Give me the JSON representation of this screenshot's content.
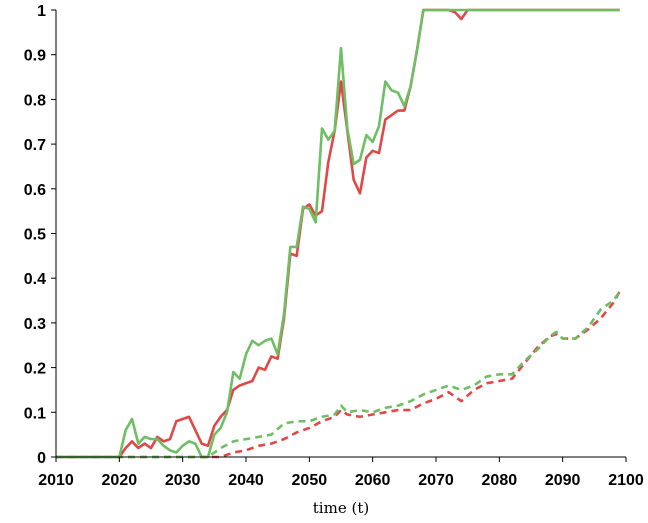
{
  "chart_data": {
    "type": "line",
    "title": "",
    "xlabel": "time (t)",
    "ylabel": "",
    "xlim": [
      2010,
      2100
    ],
    "ylim": [
      0,
      1
    ],
    "xticks": [
      2010,
      2020,
      2030,
      2040,
      2050,
      2060,
      2070,
      2080,
      2090,
      2100
    ],
    "yticks": [
      0,
      0.1,
      0.2,
      0.3,
      0.4,
      0.5,
      0.6,
      0.7,
      0.8,
      0.9,
      1
    ],
    "ytick_labels": [
      "0",
      "0.1",
      "0.2",
      "0.3",
      "0.4",
      "0.5",
      "0.6",
      "0.7",
      "0.8",
      "0.9",
      "1"
    ],
    "grid": false,
    "legend": "none",
    "series": [
      {
        "color": "#e04848",
        "style": "solid",
        "x": [
          2010,
          2020,
          2021,
          2022,
          2023,
          2024,
          2025,
          2026,
          2027,
          2028,
          2029,
          2030,
          2031,
          2032,
          2033,
          2034,
          2035,
          2036,
          2037,
          2038,
          2039,
          2040,
          2041,
          2042,
          2043,
          2044,
          2045,
          2046,
          2047,
          2048,
          2049,
          2050,
          2051,
          2052,
          2053,
          2054,
          2055,
          2056,
          2057,
          2058,
          2059,
          2060,
          2061,
          2062,
          2063,
          2064,
          2065,
          2066,
          2067,
          2068,
          2070,
          2072,
          2073,
          2074,
          2075,
          2080,
          2090,
          2099
        ],
        "y": [
          0,
          0,
          0.02,
          0.035,
          0.02,
          0.03,
          0.02,
          0.045,
          0.035,
          0.04,
          0.08,
          0.085,
          0.09,
          0.06,
          0.03,
          0.025,
          0.07,
          0.09,
          0.105,
          0.15,
          0.16,
          0.165,
          0.17,
          0.2,
          0.195,
          0.225,
          0.22,
          0.31,
          0.455,
          0.45,
          0.555,
          0.565,
          0.54,
          0.55,
          0.66,
          0.73,
          0.84,
          0.73,
          0.62,
          0.59,
          0.67,
          0.685,
          0.68,
          0.755,
          0.765,
          0.775,
          0.775,
          0.83,
          0.91,
          1,
          1,
          1,
          0.995,
          0.98,
          1,
          1,
          1,
          1
        ]
      },
      {
        "color": "#6ebe64",
        "style": "solid",
        "x": [
          2010,
          2020,
          2021,
          2022,
          2023,
          2024,
          2025,
          2026,
          2027,
          2028,
          2029,
          2030,
          2031,
          2032,
          2033,
          2034,
          2035,
          2036,
          2037,
          2038,
          2039,
          2040,
          2041,
          2042,
          2043,
          2044,
          2045,
          2046,
          2047,
          2048,
          2049,
          2050,
          2051,
          2052,
          2053,
          2054,
          2055,
          2056,
          2057,
          2058,
          2059,
          2060,
          2061,
          2062,
          2063,
          2064,
          2065,
          2066,
          2067,
          2068,
          2070,
          2080,
          2090,
          2099
        ],
        "y": [
          0,
          0,
          0.06,
          0.085,
          0.03,
          0.045,
          0.04,
          0.04,
          0.025,
          0.015,
          0.01,
          0.025,
          0.035,
          0.03,
          0,
          0,
          0.05,
          0.065,
          0.1,
          0.19,
          0.175,
          0.23,
          0.26,
          0.25,
          0.26,
          0.265,
          0.23,
          0.32,
          0.47,
          0.47,
          0.56,
          0.555,
          0.525,
          0.735,
          0.71,
          0.73,
          0.915,
          0.735,
          0.655,
          0.665,
          0.72,
          0.705,
          0.74,
          0.84,
          0.82,
          0.815,
          0.785,
          0.83,
          0.91,
          1,
          1,
          1,
          1,
          1
        ]
      },
      {
        "color": "#e04848",
        "style": "dashed",
        "x": [
          2010,
          2036,
          2038,
          2040,
          2042,
          2044,
          2046,
          2048,
          2050,
          2052,
          2054,
          2055,
          2056,
          2058,
          2060,
          2062,
          2064,
          2066,
          2068,
          2070,
          2072,
          2074,
          2076,
          2078,
          2080,
          2082,
          2084,
          2086,
          2088,
          2089,
          2090,
          2092,
          2094,
          2096,
          2098,
          2099
        ],
        "y": [
          0,
          0,
          0.01,
          0.015,
          0.025,
          0.03,
          0.04,
          0.055,
          0.065,
          0.08,
          0.09,
          0.105,
          0.095,
          0.09,
          0.095,
          0.1,
          0.105,
          0.105,
          0.12,
          0.13,
          0.145,
          0.125,
          0.15,
          0.165,
          0.17,
          0.175,
          0.21,
          0.245,
          0.27,
          0.275,
          0.265,
          0.265,
          0.285,
          0.31,
          0.345,
          0.37
        ]
      },
      {
        "color": "#6ebe64",
        "style": "dashed",
        "x": [
          2010,
          2034,
          2036,
          2038,
          2040,
          2042,
          2044,
          2046,
          2048,
          2050,
          2052,
          2054,
          2055,
          2056,
          2058,
          2060,
          2062,
          2064,
          2066,
          2068,
          2070,
          2072,
          2074,
          2076,
          2078,
          2080,
          2082,
          2084,
          2086,
          2088,
          2089,
          2090,
          2092,
          2094,
          2096,
          2098,
          2099
        ],
        "y": [
          0,
          0,
          0.02,
          0.035,
          0.04,
          0.045,
          0.05,
          0.075,
          0.08,
          0.08,
          0.09,
          0.095,
          0.115,
          0.1,
          0.105,
          0.1,
          0.11,
          0.115,
          0.125,
          0.14,
          0.15,
          0.16,
          0.15,
          0.16,
          0.18,
          0.185,
          0.185,
          0.215,
          0.24,
          0.27,
          0.28,
          0.265,
          0.265,
          0.29,
          0.33,
          0.35,
          0.37
        ]
      }
    ]
  }
}
